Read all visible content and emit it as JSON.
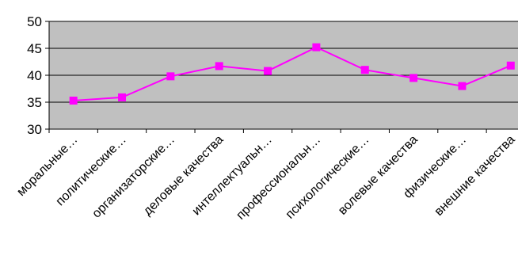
{
  "chart_data": {
    "type": "line",
    "title": "",
    "xlabel": "",
    "ylabel": "",
    "categories": [
      "моральные…",
      "политические…",
      "организаторские…",
      "деловые качества",
      "интеллектуальн…",
      "профессиональн…",
      "психологические…",
      "волевые качества",
      "физические…",
      "внешние качества"
    ],
    "series": [
      {
        "values": [
          35.3,
          35.9,
          39.8,
          41.7,
          40.8,
          45.2,
          41.0,
          39.5,
          38.0,
          41.8
        ]
      }
    ],
    "ylim": [
      30,
      50
    ],
    "yticks": [
      "30",
      "35",
      "40",
      "45",
      "50"
    ],
    "grid": "horizontal",
    "legend": "none",
    "colors": {
      "plot_background": "#c0c0c0",
      "series": "#ff00ff",
      "gridline": "#000000",
      "axis": "#000000"
    }
  }
}
